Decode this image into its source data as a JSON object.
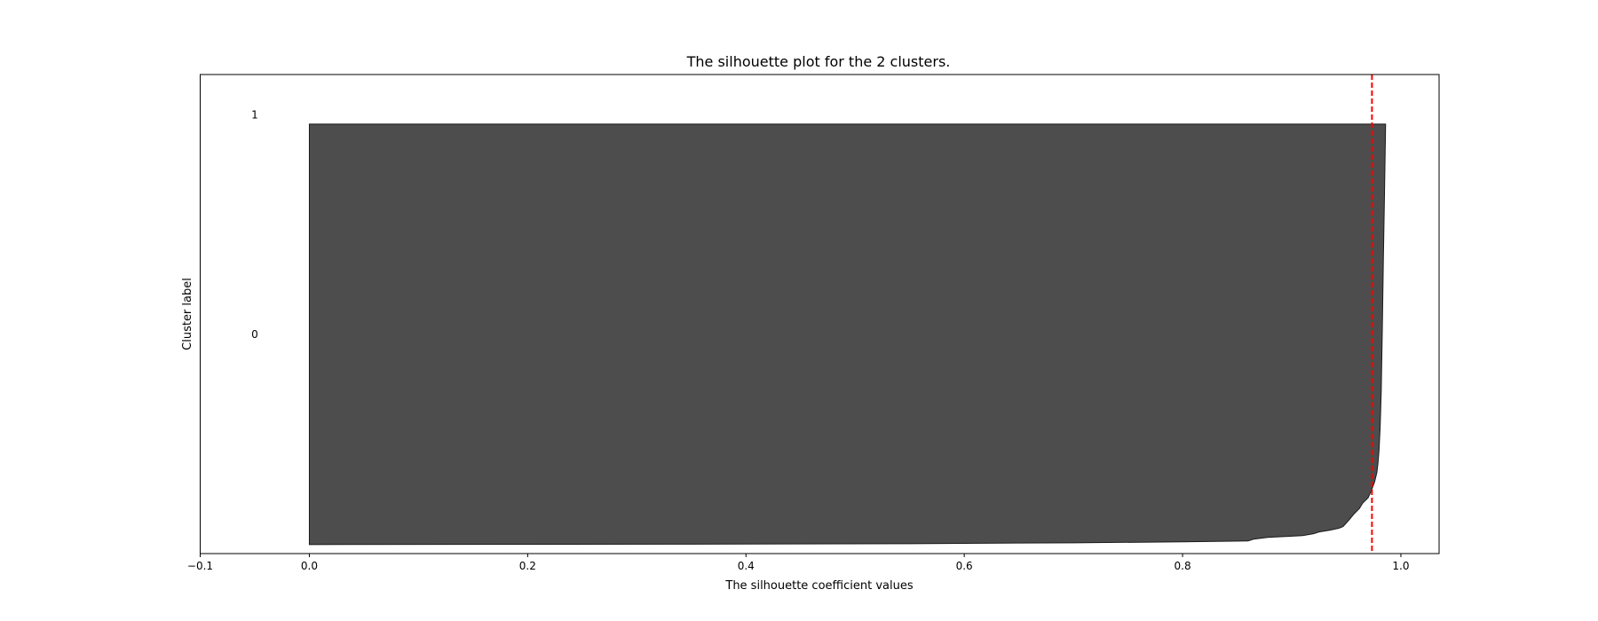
{
  "chart_data": {
    "type": "area",
    "title": "The silhouette plot for the 2 clusters.",
    "xlabel": "The silhouette coefficient values",
    "ylabel": "Cluster label",
    "xlim": [
      -0.1,
      1.035
    ],
    "ylim": [
      0,
      532
    ],
    "xticks": [
      -0.1,
      0.0,
      0.2,
      0.4,
      0.6,
      0.8,
      1.0
    ],
    "xtick_labels": [
      "−0.1",
      "0.0",
      "0.2",
      "0.4",
      "0.6",
      "0.8",
      "1.0"
    ],
    "grid": false,
    "legend": "none",
    "average_line": {
      "x": 0.9735,
      "style": "dashed",
      "color": "#ff0000"
    },
    "clusters": [
      {
        "label": "0",
        "label_x": -0.05,
        "y_lower": 10,
        "y_upper": 477,
        "color": "#4d4d4d",
        "profile": [
          {
            "y": 10,
            "x": 0.0
          },
          {
            "y": 10.5,
            "x": 0.35
          },
          {
            "y": 11,
            "x": 0.55
          },
          {
            "y": 12,
            "x": 0.7
          },
          {
            "y": 13,
            "x": 0.8
          },
          {
            "y": 14,
            "x": 0.86
          },
          {
            "y": 16,
            "x": 0.865
          },
          {
            "y": 18,
            "x": 0.878
          },
          {
            "y": 20,
            "x": 0.91
          },
          {
            "y": 22,
            "x": 0.92
          },
          {
            "y": 24,
            "x": 0.925
          },
          {
            "y": 26,
            "x": 0.935
          },
          {
            "y": 28,
            "x": 0.943
          },
          {
            "y": 30,
            "x": 0.947
          },
          {
            "y": 34,
            "x": 0.95
          },
          {
            "y": 38,
            "x": 0.953
          },
          {
            "y": 44,
            "x": 0.957
          },
          {
            "y": 50,
            "x": 0.962
          },
          {
            "y": 56,
            "x": 0.965
          },
          {
            "y": 62,
            "x": 0.97
          },
          {
            "y": 70,
            "x": 0.973
          },
          {
            "y": 80,
            "x": 0.976
          },
          {
            "y": 90,
            "x": 0.978
          },
          {
            "y": 100,
            "x": 0.979
          },
          {
            "y": 115,
            "x": 0.98
          },
          {
            "y": 140,
            "x": 0.981
          },
          {
            "y": 180,
            "x": 0.982
          },
          {
            "y": 250,
            "x": 0.983
          },
          {
            "y": 330,
            "x": 0.984
          },
          {
            "y": 400,
            "x": 0.985
          },
          {
            "y": 477,
            "x": 0.986
          }
        ]
      },
      {
        "label": "1",
        "label_x": -0.05,
        "y_lower": 487,
        "y_upper": 487,
        "color": "#4d4d4d",
        "profile": []
      }
    ]
  }
}
